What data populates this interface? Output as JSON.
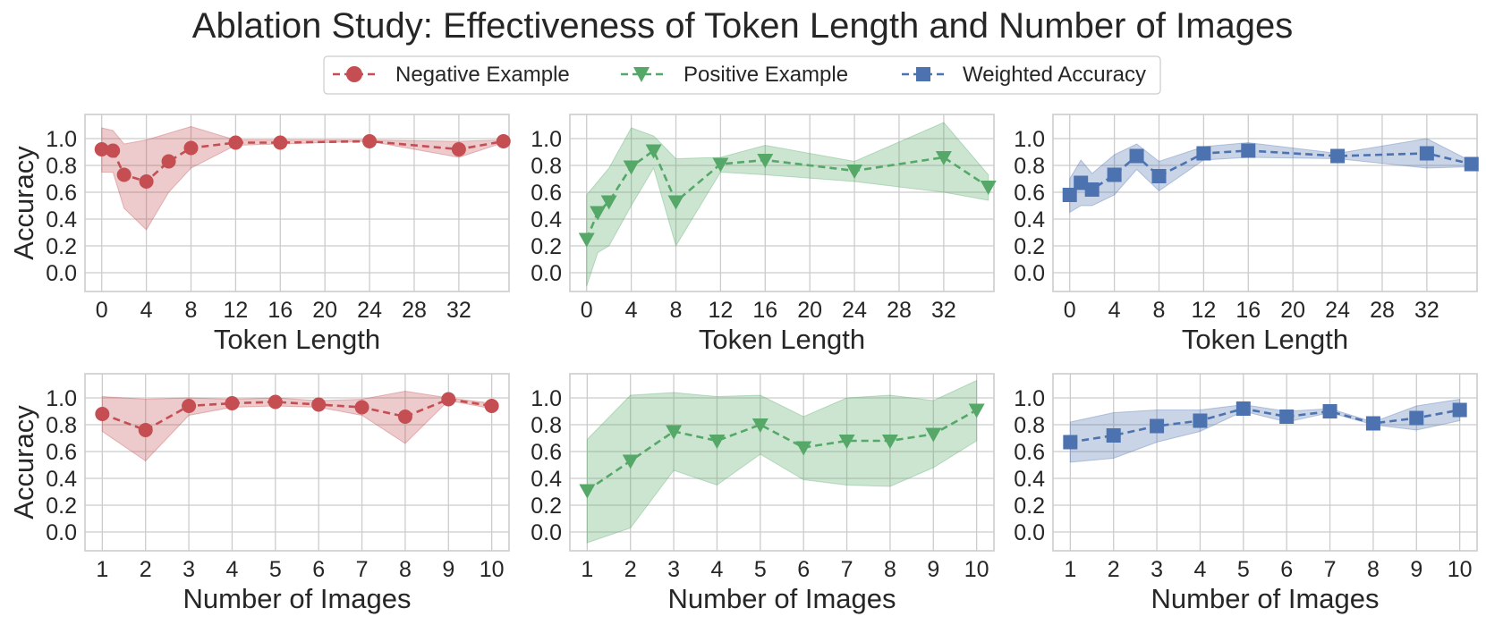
{
  "title": "Ablation Study: Effectiveness of Token Length and Number of Images",
  "legend": [
    {
      "label": "Negative Example",
      "color": "#c44e52",
      "marker": "circle"
    },
    {
      "label": "Positive Example",
      "color": "#55a868",
      "marker": "triangle-down"
    },
    {
      "label": "Weighted Accuracy",
      "color": "#4c72b0",
      "marker": "square"
    }
  ],
  "chart_data": [
    {
      "type": "line",
      "row": 0,
      "col": 0,
      "series_name": "Negative Example",
      "color": "#c44e52",
      "marker": "circle",
      "xlabel": "Token Length",
      "ylabel": "Accuracy",
      "xlim": [
        -1.5,
        36.5
      ],
      "xticks": [
        0,
        4,
        8,
        12,
        16,
        20,
        24,
        28,
        32
      ],
      "ylim": [
        -0.14,
        1.18
      ],
      "yticks": [
        0.0,
        0.2,
        0.4,
        0.6,
        0.8,
        1.0
      ],
      "x": [
        0,
        1,
        2,
        4,
        6,
        8,
        12,
        16,
        24,
        32,
        36
      ],
      "y": [
        0.92,
        0.91,
        0.73,
        0.68,
        0.83,
        0.93,
        0.97,
        0.97,
        0.98,
        0.92,
        0.98
      ],
      "lower": [
        0.75,
        0.75,
        0.48,
        0.32,
        0.6,
        0.78,
        0.95,
        0.96,
        0.98,
        0.86,
        0.97
      ],
      "upper": [
        1.08,
        1.06,
        0.96,
        0.99,
        1.04,
        1.09,
        0.99,
        0.99,
        0.99,
        0.98,
        0.99
      ]
    },
    {
      "type": "line",
      "row": 0,
      "col": 1,
      "series_name": "Positive Example",
      "color": "#55a868",
      "marker": "triangle-down",
      "xlabel": "Token Length",
      "ylabel": "",
      "xlim": [
        -1.5,
        36.5
      ],
      "xticks": [
        0,
        4,
        8,
        12,
        16,
        20,
        24,
        28,
        32
      ],
      "ylim": [
        -0.14,
        1.18
      ],
      "yticks": [
        0.0,
        0.2,
        0.4,
        0.6,
        0.8,
        1.0
      ],
      "x": [
        0,
        1,
        2,
        4,
        6,
        8,
        12,
        16,
        24,
        32,
        36
      ],
      "y": [
        0.25,
        0.45,
        0.53,
        0.79,
        0.91,
        0.53,
        0.81,
        0.84,
        0.76,
        0.86,
        0.64
      ],
      "lower": [
        -0.1,
        0.15,
        0.2,
        0.5,
        0.78,
        0.2,
        0.75,
        0.73,
        0.68,
        0.6,
        0.54
      ],
      "upper": [
        0.58,
        0.68,
        0.78,
        1.08,
        1.02,
        0.85,
        0.86,
        0.95,
        0.83,
        1.12,
        0.73
      ]
    },
    {
      "type": "line",
      "row": 0,
      "col": 2,
      "series_name": "Weighted Accuracy",
      "color": "#4c72b0",
      "marker": "square",
      "xlabel": "Token Length",
      "ylabel": "",
      "xlim": [
        -1.5,
        36.5
      ],
      "xticks": [
        0,
        4,
        8,
        12,
        16,
        20,
        24,
        28,
        32
      ],
      "ylim": [
        -0.14,
        1.18
      ],
      "yticks": [
        0.0,
        0.2,
        0.4,
        0.6,
        0.8,
        1.0
      ],
      "x": [
        0,
        1,
        2,
        4,
        6,
        8,
        12,
        16,
        24,
        32,
        36
      ],
      "y": [
        0.58,
        0.67,
        0.62,
        0.73,
        0.87,
        0.72,
        0.89,
        0.91,
        0.87,
        0.89,
        0.81
      ],
      "lower": [
        0.45,
        0.5,
        0.5,
        0.58,
        0.77,
        0.61,
        0.84,
        0.86,
        0.85,
        0.78,
        0.79
      ],
      "upper": [
        0.7,
        0.84,
        0.74,
        0.88,
        0.96,
        0.83,
        0.94,
        0.97,
        0.89,
        1.0,
        0.83
      ]
    },
    {
      "type": "line",
      "row": 1,
      "col": 0,
      "series_name": "Negative Example",
      "color": "#c44e52",
      "marker": "circle",
      "xlabel": "Number of Images",
      "ylabel": "Accuracy",
      "xlim": [
        0.6,
        10.4
      ],
      "xticks": [
        1,
        2,
        3,
        4,
        5,
        6,
        7,
        8,
        9,
        10
      ],
      "ylim": [
        -0.14,
        1.18
      ],
      "yticks": [
        0.0,
        0.2,
        0.4,
        0.6,
        0.8,
        1.0
      ],
      "x": [
        1,
        2,
        3,
        4,
        5,
        6,
        7,
        8,
        9,
        10
      ],
      "y": [
        0.88,
        0.76,
        0.94,
        0.96,
        0.97,
        0.95,
        0.93,
        0.86,
        0.99,
        0.94
      ],
      "lower": [
        0.75,
        0.53,
        0.87,
        0.93,
        0.94,
        0.93,
        0.87,
        0.66,
        0.98,
        0.92
      ],
      "upper": [
        1.01,
        0.99,
        1.0,
        0.99,
        1.0,
        0.98,
        0.99,
        1.05,
        1.0,
        0.96
      ]
    },
    {
      "type": "line",
      "row": 1,
      "col": 1,
      "series_name": "Positive Example",
      "color": "#55a868",
      "marker": "triangle-down",
      "xlabel": "Number of Images",
      "ylabel": "",
      "xlim": [
        0.6,
        10.4
      ],
      "xticks": [
        1,
        2,
        3,
        4,
        5,
        6,
        7,
        8,
        9,
        10
      ],
      "ylim": [
        -0.14,
        1.18
      ],
      "yticks": [
        0.0,
        0.2,
        0.4,
        0.6,
        0.8,
        1.0
      ],
      "x": [
        1,
        2,
        3,
        4,
        5,
        6,
        7,
        8,
        9,
        10
      ],
      "y": [
        0.31,
        0.53,
        0.75,
        0.68,
        0.8,
        0.63,
        0.68,
        0.68,
        0.73,
        0.91
      ],
      "lower": [
        -0.08,
        0.03,
        0.46,
        0.35,
        0.58,
        0.39,
        0.35,
        0.34,
        0.48,
        0.68
      ],
      "upper": [
        0.69,
        1.02,
        1.04,
        1.01,
        1.02,
        0.86,
        1.0,
        1.02,
        0.98,
        1.13
      ]
    },
    {
      "type": "line",
      "row": 1,
      "col": 2,
      "series_name": "Weighted Accuracy",
      "color": "#4c72b0",
      "marker": "square",
      "xlabel": "Number of Images",
      "ylabel": "",
      "xlim": [
        0.6,
        10.4
      ],
      "xticks": [
        1,
        2,
        3,
        4,
        5,
        6,
        7,
        8,
        9,
        10
      ],
      "ylim": [
        -0.14,
        1.18
      ],
      "yticks": [
        0.0,
        0.2,
        0.4,
        0.6,
        0.8,
        1.0
      ],
      "x": [
        1,
        2,
        3,
        4,
        5,
        6,
        7,
        8,
        9,
        10
      ],
      "y": [
        0.67,
        0.72,
        0.79,
        0.83,
        0.92,
        0.86,
        0.9,
        0.81,
        0.85,
        0.91
      ],
      "lower": [
        0.52,
        0.55,
        0.67,
        0.75,
        0.9,
        0.82,
        0.89,
        0.8,
        0.76,
        0.83
      ],
      "upper": [
        0.82,
        0.89,
        0.91,
        0.91,
        0.95,
        0.9,
        0.92,
        0.82,
        0.94,
        0.99
      ]
    }
  ]
}
